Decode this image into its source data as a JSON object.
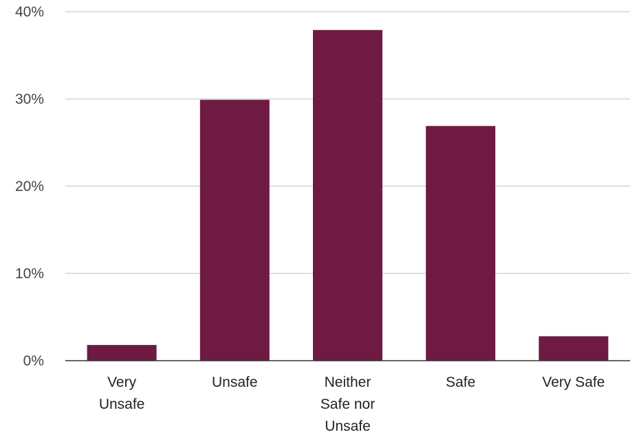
{
  "chart_data": {
    "type": "bar",
    "categories": [
      [
        "Very",
        "Unsafe"
      ],
      [
        "Unsafe"
      ],
      [
        "Neither",
        "Safe nor",
        "Unsafe"
      ],
      [
        "Safe"
      ],
      [
        "Very Safe"
      ]
    ],
    "values": [
      1.8,
      29.9,
      37.9,
      26.9,
      2.8
    ],
    "y_ticks": [
      0,
      10,
      20,
      30,
      40
    ],
    "y_tick_labels": [
      "0%",
      "10%",
      "20%",
      "30%",
      "40%"
    ],
    "ylim": [
      0,
      40
    ],
    "grid": true,
    "bar_color": "#6e1a43",
    "title": "",
    "xlabel": "",
    "ylabel": ""
  }
}
